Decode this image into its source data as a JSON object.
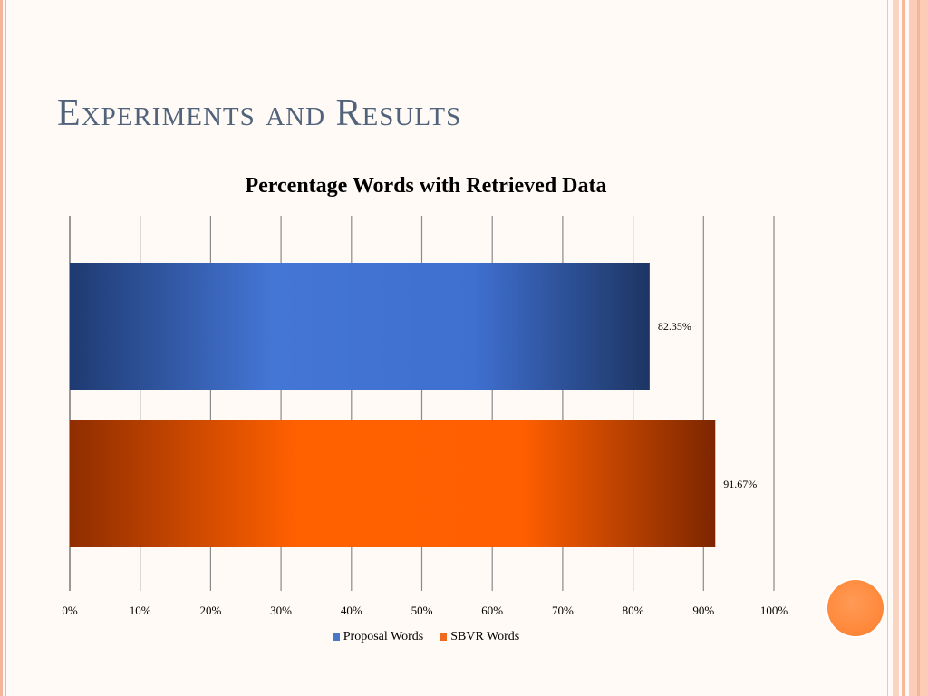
{
  "slide": {
    "title": "Experiments and Results"
  },
  "chart_data": {
    "type": "bar",
    "orientation": "horizontal",
    "title": "Percentage Words with Retrieved Data",
    "xlabel": "",
    "ylabel": "",
    "xlim": [
      0,
      100
    ],
    "x_ticks": [
      "0%",
      "10%",
      "20%",
      "30%",
      "40%",
      "50%",
      "60%",
      "70%",
      "80%",
      "90%",
      "100%"
    ],
    "grid": true,
    "legend_position": "bottom",
    "series": [
      {
        "name": "Proposal Words",
        "value": 82.35,
        "label": "82.35%",
        "color": "#3f6fcf"
      },
      {
        "name": "SBVR Words",
        "value": 91.67,
        "label": "91.67%",
        "color": "#ff6000"
      }
    ]
  }
}
